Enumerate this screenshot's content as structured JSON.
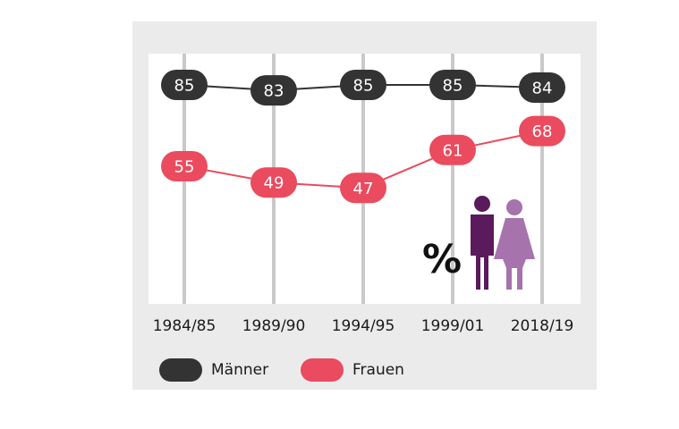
{
  "chart_data": {
    "type": "line",
    "categories": [
      "1984/85",
      "1989/90",
      "1994/95",
      "1999/01",
      "2018/19"
    ],
    "series": [
      {
        "name": "Männer",
        "values": [
          85,
          83,
          85,
          85,
          84
        ],
        "color": "#333333"
      },
      {
        "name": "Frauen",
        "values": [
          55,
          49,
          47,
          61,
          68
        ],
        "color": "#ea4b5e"
      }
    ],
    "ylim": [
      0,
      100
    ],
    "grid": "vertical",
    "legend": "bottom-left",
    "icon": {
      "symbol": "%",
      "figures": [
        "man-icon",
        "woman-icon"
      ],
      "colors": [
        "#5a1a5c",
        "#a673ad"
      ]
    }
  }
}
